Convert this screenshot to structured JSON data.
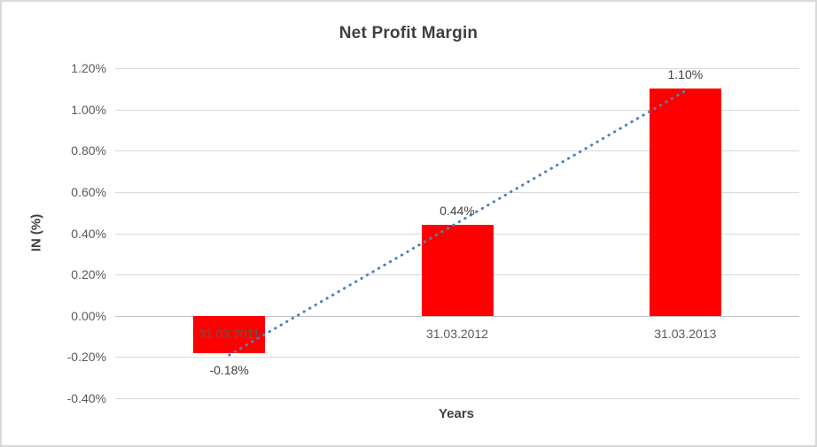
{
  "chart_data": {
    "type": "bar",
    "title": "Net Profit Margin",
    "xlabel": "Years",
    "ylabel": "IN (%)",
    "categories": [
      "31.03.2011",
      "31.03.2012",
      "31.03.2013"
    ],
    "values": [
      -0.18,
      0.44,
      1.1
    ],
    "data_labels": [
      "-0.18%",
      "0.44%",
      "1.10%"
    ],
    "ylim": [
      -0.4,
      1.2
    ],
    "ytick_step": 0.2,
    "ytick_labels": [
      "1.20%",
      "1.00%",
      "0.80%",
      "0.60%",
      "0.40%",
      "0.20%",
      "0.00%",
      "-0.20%",
      "-0.40%"
    ],
    "grid": true,
    "legend": "none",
    "trendline": {
      "type": "linear",
      "style": "dotted",
      "start_value": -0.19,
      "end_value": 1.09
    },
    "colors": {
      "bar": "#ff0000",
      "trendline": "#4f81bd",
      "gridline": "#d9d9d9",
      "axis_line": "#bfbfbf",
      "title_text": "#3f3f3f",
      "tick_text": "#595959",
      "data_label_text": "#404040",
      "border": "#d9d9d9",
      "background": "#ffffff"
    }
  }
}
